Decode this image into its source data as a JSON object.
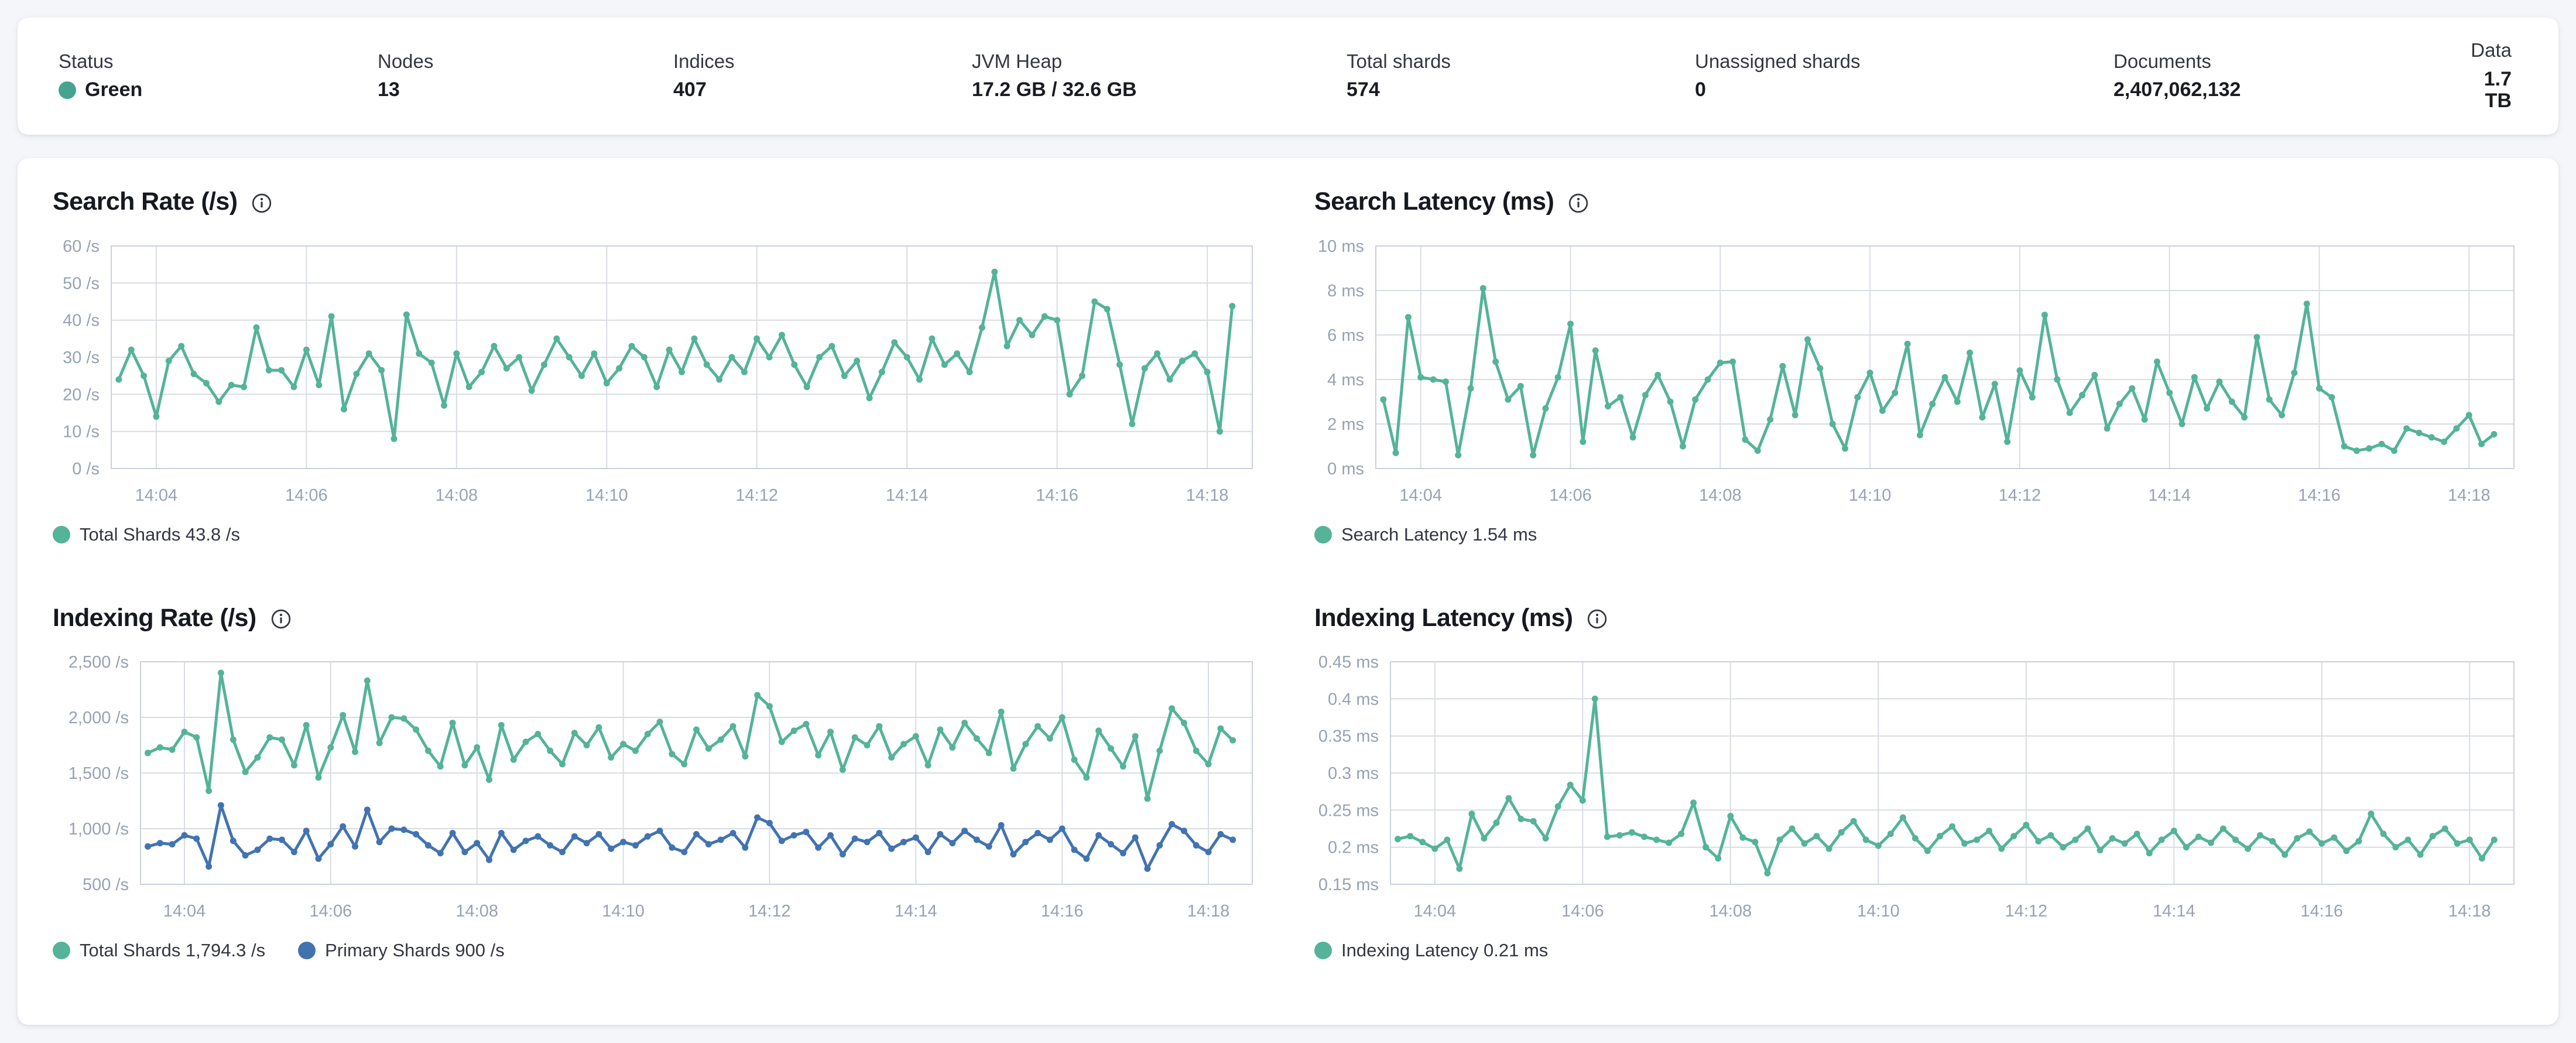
{
  "overview": {
    "status_dot_color": "#46A38F",
    "stats": [
      {
        "label": "Status",
        "value": "Green"
      },
      {
        "label": "Nodes",
        "value": "13"
      },
      {
        "label": "Indices",
        "value": "407"
      },
      {
        "label": "JVM Heap",
        "value": "17.2 GB / 32.6 GB"
      },
      {
        "label": "Total shards",
        "value": "574"
      },
      {
        "label": "Unassigned shards",
        "value": "0"
      },
      {
        "label": "Documents",
        "value": "2,407,062,132"
      },
      {
        "label": "Data",
        "value": "1.7 TB"
      }
    ]
  },
  "colors": {
    "teal_series": "#54B399",
    "blue_series": "#4273B1",
    "gridline": "#D8DCE3",
    "plot_border": "#CBD1DB",
    "tick_text": "#98A2B3",
    "legend_text": "#343741"
  },
  "chart_data": [
    {
      "id": "search-rate",
      "type": "line",
      "title": "Search Rate (/s)",
      "ylim": [
        0,
        60
      ],
      "ytick_values": [
        0,
        10,
        20,
        30,
        40,
        50,
        60
      ],
      "ytick_labels": [
        "0 /s",
        "10 /s",
        "20 /s",
        "30 /s",
        "40 /s",
        "50 /s",
        "60 /s"
      ],
      "x_tick_labels": [
        "14:04",
        "14:06",
        "14:08",
        "14:10",
        "14:12",
        "14:14",
        "14:16",
        "14:18"
      ],
      "x_tick_indices": [
        3,
        15,
        27,
        39,
        51,
        63,
        75,
        87
      ],
      "x_start": "14:03:30",
      "x_interval_seconds": 10,
      "gutter": 100,
      "grid": true,
      "legend_position": "bottom",
      "series": [
        {
          "name": "Total Shards",
          "legend_label": "Total Shards 43.8 /s",
          "color": "#54B399",
          "values": [
            24,
            32,
            25,
            14,
            29,
            33,
            25.5,
            23,
            18,
            22.5,
            22,
            38,
            26.5,
            26.5,
            22,
            32,
            22.5,
            41,
            16,
            25.5,
            31,
            26.5,
            8,
            41.5,
            31,
            28.5,
            17,
            31,
            22,
            26,
            33,
            27,
            30,
            21,
            28,
            35,
            30,
            25,
            31,
            23,
            27,
            33,
            30,
            22,
            32,
            26,
            35,
            28,
            24,
            30,
            26,
            35,
            30,
            36,
            28,
            22,
            30,
            33,
            25,
            29,
            19,
            26,
            34,
            30,
            24,
            35,
            28,
            31,
            26,
            38,
            53,
            33,
            40,
            36,
            41,
            40,
            20,
            25,
            45,
            43,
            28,
            12,
            27,
            31,
            24,
            29,
            31,
            26,
            10,
            43.8
          ]
        }
      ]
    },
    {
      "id": "search-latency",
      "type": "line",
      "title": "Search Latency (ms)",
      "ylim": [
        0,
        10
      ],
      "ytick_values": [
        0,
        2,
        4,
        6,
        8,
        10
      ],
      "ytick_labels": [
        "0 ms",
        "2 ms",
        "4 ms",
        "6 ms",
        "8 ms",
        "10 ms"
      ],
      "x_tick_labels": [
        "14:04",
        "14:06",
        "14:08",
        "14:10",
        "14:12",
        "14:14",
        "14:16",
        "14:18"
      ],
      "x_tick_indices": [
        3,
        15,
        27,
        39,
        51,
        63,
        75,
        87
      ],
      "x_start": "14:03:30",
      "x_interval_seconds": 10,
      "gutter": 105,
      "grid": true,
      "legend_position": "bottom",
      "series": [
        {
          "name": "Search Latency",
          "legend_label": "Search Latency 1.54 ms",
          "color": "#54B399",
          "values": [
            3.1,
            0.7,
            6.8,
            4.1,
            4.0,
            3.9,
            0.6,
            3.6,
            8.1,
            4.8,
            3.1,
            3.7,
            0.6,
            2.7,
            4.1,
            6.5,
            1.2,
            5.3,
            2.8,
            3.2,
            1.4,
            3.3,
            4.2,
            3.0,
            1.0,
            3.1,
            4.0,
            4.75,
            4.8,
            1.3,
            0.8,
            2.2,
            4.6,
            2.4,
            5.8,
            4.5,
            2.0,
            0.9,
            3.2,
            4.3,
            2.6,
            3.4,
            5.6,
            1.5,
            2.9,
            4.1,
            3.0,
            5.2,
            2.3,
            3.8,
            1.2,
            4.4,
            3.2,
            6.9,
            4.0,
            2.5,
            3.3,
            4.2,
            1.8,
            2.9,
            3.6,
            2.2,
            4.8,
            3.4,
            2.0,
            4.1,
            2.7,
            3.9,
            3.0,
            2.3,
            5.9,
            3.1,
            2.4,
            4.3,
            7.4,
            3.6,
            3.2,
            1.0,
            0.8,
            0.9,
            1.1,
            0.8,
            1.8,
            1.6,
            1.4,
            1.2,
            1.8,
            2.4,
            1.1,
            1.54
          ]
        }
      ]
    },
    {
      "id": "indexing-rate",
      "type": "line",
      "title": "Indexing Rate (/s)",
      "ylim": [
        500,
        2500
      ],
      "ytick_values": [
        500,
        1000,
        1500,
        2000,
        2500
      ],
      "ytick_labels": [
        "500 /s",
        "1,000 /s",
        "1,500 /s",
        "2,000 /s",
        "2,500 /s"
      ],
      "x_tick_labels": [
        "14:04",
        "14:06",
        "14:08",
        "14:10",
        "14:12",
        "14:14",
        "14:16",
        "14:18"
      ],
      "x_tick_indices": [
        3,
        15,
        27,
        39,
        51,
        63,
        75,
        87
      ],
      "x_start": "14:03:30",
      "x_interval_seconds": 10,
      "gutter": 150,
      "grid": true,
      "legend_position": "bottom",
      "series": [
        {
          "name": "Total Shards",
          "legend_label": "Total Shards 1,794.3 /s",
          "color": "#54B399",
          "values": [
            1680,
            1730,
            1710,
            1870,
            1820,
            1340,
            2400,
            1800,
            1510,
            1640,
            1820,
            1800,
            1570,
            1930,
            1460,
            1730,
            2020,
            1690,
            2330,
            1770,
            2000,
            1990,
            1890,
            1700,
            1560,
            1950,
            1570,
            1730,
            1440,
            1930,
            1620,
            1780,
            1850,
            1700,
            1580,
            1860,
            1750,
            1910,
            1640,
            1760,
            1700,
            1850,
            1960,
            1670,
            1580,
            1890,
            1720,
            1800,
            1920,
            1650,
            2200,
            2100,
            1780,
            1880,
            1940,
            1660,
            1870,
            1530,
            1820,
            1750,
            1920,
            1640,
            1760,
            1830,
            1570,
            1890,
            1730,
            1950,
            1810,
            1680,
            2050,
            1540,
            1760,
            1920,
            1810,
            2000,
            1620,
            1460,
            1880,
            1720,
            1560,
            1830,
            1270,
            1700,
            2080,
            1950,
            1700,
            1580,
            1900,
            1794.3
          ]
        },
        {
          "name": "Primary Shards",
          "legend_label": "Primary Shards 900 /s",
          "color": "#4273B1",
          "values": [
            840,
            870,
            860,
            940,
            910,
            660,
            1210,
            890,
            760,
            810,
            910,
            900,
            790,
            980,
            730,
            860,
            1020,
            840,
            1170,
            880,
            1000,
            990,
            950,
            850,
            780,
            960,
            790,
            870,
            720,
            960,
            810,
            890,
            930,
            850,
            790,
            930,
            870,
            950,
            820,
            880,
            850,
            930,
            980,
            830,
            790,
            950,
            860,
            900,
            960,
            830,
            1100,
            1050,
            890,
            940,
            970,
            830,
            940,
            770,
            910,
            880,
            960,
            820,
            880,
            920,
            790,
            950,
            870,
            980,
            900,
            840,
            1030,
            770,
            880,
            960,
            900,
            1000,
            810,
            730,
            940,
            860,
            780,
            920,
            640,
            850,
            1040,
            980,
            850,
            790,
            950,
            900
          ]
        }
      ]
    },
    {
      "id": "indexing-latency",
      "type": "line",
      "title": "Indexing Latency (ms)",
      "ylim": [
        0.15,
        0.45
      ],
      "ytick_values": [
        0.15,
        0.2,
        0.25,
        0.3,
        0.35,
        0.4,
        0.45
      ],
      "ytick_labels": [
        "0.15 ms",
        "0.2 ms",
        "0.25 ms",
        "0.3 ms",
        "0.35 ms",
        "0.4 ms",
        "0.45 ms"
      ],
      "x_tick_labels": [
        "14:04",
        "14:06",
        "14:08",
        "14:10",
        "14:12",
        "14:14",
        "14:16",
        "14:18"
      ],
      "x_tick_indices": [
        3,
        15,
        27,
        39,
        51,
        63,
        75,
        87
      ],
      "x_start": "14:03:30",
      "x_interval_seconds": 10,
      "gutter": 130,
      "grid": true,
      "legend_position": "bottom",
      "series": [
        {
          "name": "Indexing Latency",
          "legend_label": "Indexing Latency 0.21 ms",
          "color": "#54B399",
          "values": [
            0.211,
            0.215,
            0.207,
            0.198,
            0.21,
            0.171,
            0.245,
            0.212,
            0.233,
            0.266,
            0.238,
            0.235,
            0.212,
            0.255,
            0.284,
            0.263,
            0.4,
            0.214,
            0.216,
            0.22,
            0.214,
            0.21,
            0.206,
            0.218,
            0.26,
            0.2,
            0.185,
            0.242,
            0.213,
            0.207,
            0.165,
            0.21,
            0.225,
            0.205,
            0.215,
            0.198,
            0.22,
            0.235,
            0.21,
            0.202,
            0.218,
            0.24,
            0.212,
            0.195,
            0.215,
            0.228,
            0.205,
            0.21,
            0.222,
            0.198,
            0.215,
            0.23,
            0.208,
            0.216,
            0.2,
            0.21,
            0.225,
            0.196,
            0.212,
            0.205,
            0.218,
            0.192,
            0.21,
            0.222,
            0.2,
            0.214,
            0.206,
            0.225,
            0.21,
            0.198,
            0.216,
            0.208,
            0.19,
            0.212,
            0.221,
            0.205,
            0.213,
            0.195,
            0.208,
            0.245,
            0.218,
            0.2,
            0.21,
            0.19,
            0.215,
            0.225,
            0.205,
            0.21,
            0.185,
            0.21
          ]
        }
      ]
    }
  ]
}
